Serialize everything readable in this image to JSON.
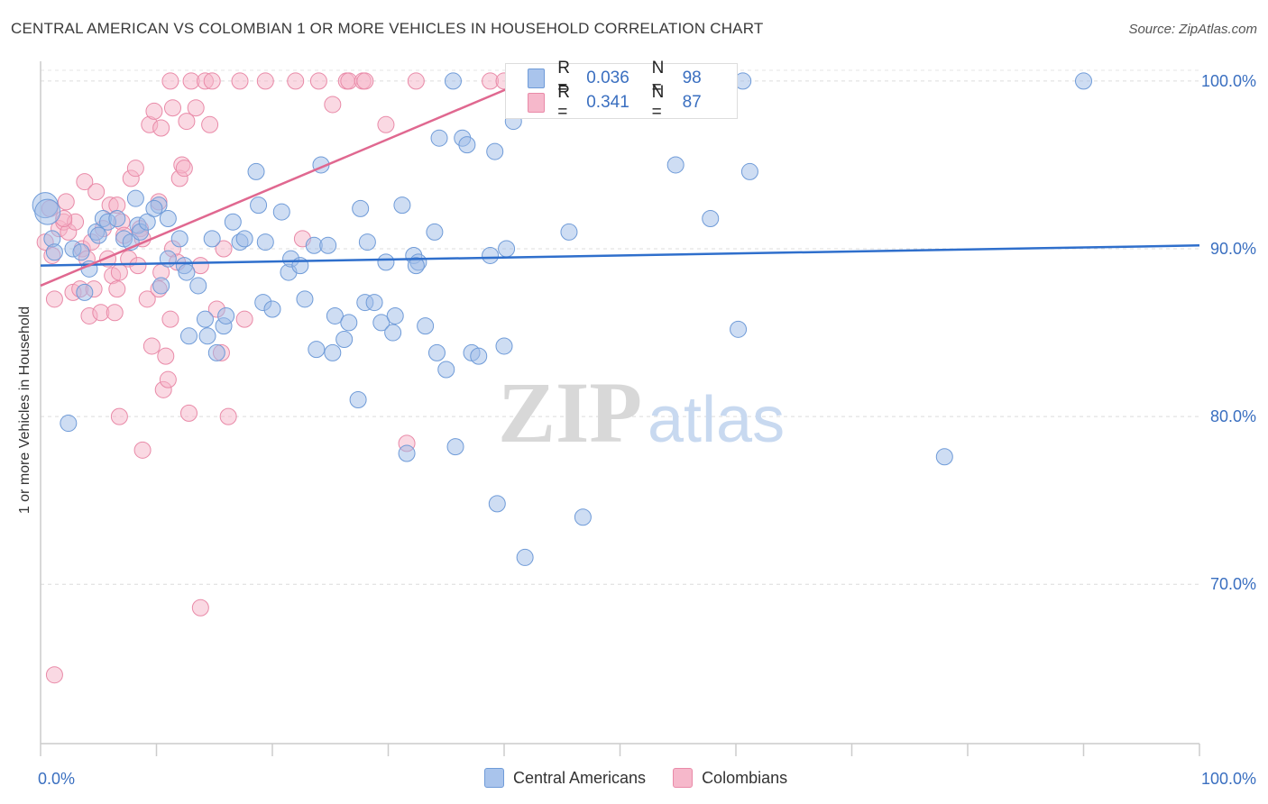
{
  "title": "CENTRAL AMERICAN VS COLOMBIAN 1 OR MORE VEHICLES IN HOUSEHOLD CORRELATION CHART",
  "source": "Source: ZipAtlas.com",
  "watermark": {
    "zip": "ZIP",
    "atlas": "atlas"
  },
  "legend_box": {
    "rows": [
      {
        "r_label": "R =",
        "r_value": "0.036",
        "n_label": "N =",
        "n_value": "98",
        "color": "#a9c4ec"
      },
      {
        "r_label": "R =",
        "r_value": "0.341",
        "n_label": "N =",
        "n_value": "87",
        "color": "#f6b8cb"
      }
    ]
  },
  "bottom_legend": [
    {
      "label": "Central Americans",
      "color": "#a9c4ec"
    },
    {
      "label": "Colombians",
      "color": "#f6b8cb"
    }
  ],
  "colors": {
    "blue_point": "#9dbbe8",
    "blue_stroke": "#6f9bd8",
    "blue_line": "#2f6fcc",
    "pink_point": "#f5b3c7",
    "pink_stroke": "#e98aa8",
    "pink_line": "#e06890",
    "tick_label": "#3a6fc0"
  },
  "chart_data": {
    "type": "scatter",
    "title": "CENTRAL AMERICAN VS COLOMBIAN 1 OR MORE VEHICLES IN HOUSEHOLD CORRELATION CHART",
    "xlabel": "",
    "ylabel": "1 or more Vehicles in Household",
    "xlim": [
      0,
      100
    ],
    "ylim": [
      60.5,
      101.5
    ],
    "x_tick_labels": [
      "0.0%",
      "100.0%"
    ],
    "y_ticks": [
      70,
      80,
      90,
      100
    ],
    "y_tick_labels": [
      "70.0%",
      "80.0%",
      "90.0%",
      "100.0%"
    ],
    "grid": true,
    "legend_position": "top-center",
    "series": [
      {
        "name": "Central Americans",
        "r": 0.036,
        "n": 98,
        "trend": [
          [
            0,
            89.0
          ],
          [
            100,
            90.2
          ]
        ],
        "points": [
          [
            0.4,
            92.6
          ],
          [
            0.6,
            92.2
          ],
          [
            1.0,
            90.6
          ],
          [
            1.2,
            89.8
          ],
          [
            2.4,
            79.6
          ],
          [
            2.8,
            90.0
          ],
          [
            3.5,
            89.8
          ],
          [
            3.8,
            87.4
          ],
          [
            4.2,
            88.8
          ],
          [
            4.8,
            91.0
          ],
          [
            5.4,
            91.8
          ],
          [
            5.8,
            91.6
          ],
          [
            6.6,
            91.8
          ],
          [
            7.2,
            90.6
          ],
          [
            7.8,
            90.4
          ],
          [
            8.2,
            93.0
          ],
          [
            8.4,
            91.4
          ],
          [
            8.6,
            91.0
          ],
          [
            9.2,
            91.6
          ],
          [
            10.2,
            92.6
          ],
          [
            10.4,
            87.8
          ],
          [
            11.0,
            91.8
          ],
          [
            11.0,
            89.4
          ],
          [
            12.4,
            89.0
          ],
          [
            12.6,
            88.6
          ],
          [
            12.8,
            84.8
          ],
          [
            13.6,
            87.8
          ],
          [
            14.2,
            85.8
          ],
          [
            14.4,
            84.8
          ],
          [
            14.8,
            90.6
          ],
          [
            15.2,
            83.8
          ],
          [
            15.8,
            85.4
          ],
          [
            16.0,
            86.0
          ],
          [
            16.6,
            91.6
          ],
          [
            17.2,
            90.4
          ],
          [
            17.6,
            90.6
          ],
          [
            18.6,
            94.6
          ],
          [
            18.8,
            92.6
          ],
          [
            19.2,
            86.8
          ],
          [
            19.4,
            90.4
          ],
          [
            20.0,
            86.4
          ],
          [
            20.8,
            92.2
          ],
          [
            21.4,
            88.6
          ],
          [
            21.6,
            89.4
          ],
          [
            22.4,
            89.0
          ],
          [
            22.8,
            87.0
          ],
          [
            23.8,
            84.0
          ],
          [
            23.6,
            90.2
          ],
          [
            24.2,
            95.0
          ],
          [
            24.8,
            90.2
          ],
          [
            25.2,
            83.8
          ],
          [
            25.4,
            86.0
          ],
          [
            26.2,
            84.6
          ],
          [
            26.6,
            85.6
          ],
          [
            27.4,
            81.0
          ],
          [
            27.6,
            92.4
          ],
          [
            28.0,
            86.8
          ],
          [
            28.2,
            90.4
          ],
          [
            28.8,
            86.8
          ],
          [
            29.4,
            85.6
          ],
          [
            29.8,
            89.2
          ],
          [
            30.4,
            85.0
          ],
          [
            30.6,
            86.0
          ],
          [
            31.2,
            92.6
          ],
          [
            32.2,
            89.6
          ],
          [
            32.6,
            89.2
          ],
          [
            32.4,
            89.0
          ],
          [
            33.2,
            85.4
          ],
          [
            34.0,
            91.0
          ],
          [
            34.2,
            83.8
          ],
          [
            34.4,
            96.6
          ],
          [
            35.0,
            82.8
          ],
          [
            35.6,
            100.0
          ],
          [
            35.8,
            78.2
          ],
          [
            36.4,
            96.6
          ],
          [
            36.8,
            96.2
          ],
          [
            37.2,
            83.8
          ],
          [
            37.8,
            83.6
          ],
          [
            38.8,
            89.6
          ],
          [
            39.2,
            95.8
          ],
          [
            39.4,
            74.8
          ],
          [
            40.0,
            84.2
          ],
          [
            40.2,
            90.0
          ],
          [
            40.8,
            97.6
          ],
          [
            41.8,
            71.6
          ],
          [
            45.6,
            91.0
          ],
          [
            46.8,
            74.0
          ],
          [
            54.8,
            95.0
          ],
          [
            57.8,
            91.8
          ],
          [
            60.2,
            85.2
          ],
          [
            60.6,
            100.0
          ],
          [
            61.2,
            94.6
          ],
          [
            78.0,
            77.6
          ],
          [
            90.0,
            100.0
          ],
          [
            31.6,
            77.8
          ],
          [
            9.8,
            92.4
          ],
          [
            5.0,
            90.8
          ],
          [
            12.0,
            90.6
          ]
        ]
      },
      {
        "name": "Colombians",
        "r": 0.341,
        "n": 87,
        "trend": [
          [
            0,
            87.8
          ],
          [
            40.5,
            99.6
          ]
        ],
        "points": [
          [
            0.4,
            90.4
          ],
          [
            0.8,
            92.4
          ],
          [
            1.0,
            89.6
          ],
          [
            1.2,
            87.0
          ],
          [
            1.6,
            91.2
          ],
          [
            2.0,
            91.6
          ],
          [
            2.2,
            92.8
          ],
          [
            2.4,
            91.0
          ],
          [
            2.8,
            87.4
          ],
          [
            3.0,
            91.6
          ],
          [
            3.4,
            87.6
          ],
          [
            3.6,
            90.0
          ],
          [
            3.8,
            94.0
          ],
          [
            4.0,
            89.4
          ],
          [
            4.2,
            86.0
          ],
          [
            4.4,
            90.4
          ],
          [
            4.6,
            87.6
          ],
          [
            4.8,
            93.4
          ],
          [
            5.2,
            86.2
          ],
          [
            5.4,
            91.2
          ],
          [
            5.8,
            89.4
          ],
          [
            6.0,
            92.6
          ],
          [
            6.2,
            88.4
          ],
          [
            6.6,
            87.6
          ],
          [
            6.6,
            92.6
          ],
          [
            6.8,
            88.6
          ],
          [
            6.8,
            80.0
          ],
          [
            7.0,
            91.6
          ],
          [
            7.2,
            90.8
          ],
          [
            7.6,
            89.4
          ],
          [
            7.8,
            94.2
          ],
          [
            8.2,
            94.8
          ],
          [
            8.4,
            89.0
          ],
          [
            8.6,
            91.2
          ],
          [
            8.8,
            90.6
          ],
          [
            8.8,
            78.0
          ],
          [
            9.2,
            87.0
          ],
          [
            9.4,
            97.4
          ],
          [
            9.6,
            84.2
          ],
          [
            9.8,
            98.2
          ],
          [
            10.2,
            92.8
          ],
          [
            10.2,
            87.6
          ],
          [
            10.4,
            97.2
          ],
          [
            10.4,
            88.6
          ],
          [
            10.6,
            81.6
          ],
          [
            10.8,
            83.6
          ],
          [
            11.0,
            82.2
          ],
          [
            11.2,
            85.8
          ],
          [
            11.4,
            90.0
          ],
          [
            11.2,
            100.0
          ],
          [
            11.4,
            98.4
          ],
          [
            11.8,
            89.2
          ],
          [
            12.0,
            94.2
          ],
          [
            12.2,
            95.0
          ],
          [
            12.4,
            94.8
          ],
          [
            12.6,
            97.6
          ],
          [
            12.8,
            80.2
          ],
          [
            13.0,
            100.0
          ],
          [
            13.4,
            98.4
          ],
          [
            13.8,
            89.0
          ],
          [
            13.8,
            68.6
          ],
          [
            14.2,
            100.0
          ],
          [
            14.6,
            97.4
          ],
          [
            14.8,
            100.0
          ],
          [
            15.2,
            86.4
          ],
          [
            15.6,
            83.8
          ],
          [
            15.8,
            90.0
          ],
          [
            16.2,
            80.0
          ],
          [
            17.2,
            100.0
          ],
          [
            17.6,
            85.8
          ],
          [
            19.4,
            100.0
          ],
          [
            22.0,
            100.0
          ],
          [
            22.6,
            90.6
          ],
          [
            24.0,
            100.0
          ],
          [
            25.2,
            98.6
          ],
          [
            26.4,
            100.0
          ],
          [
            26.6,
            100.0
          ],
          [
            27.8,
            100.0
          ],
          [
            28.0,
            100.0
          ],
          [
            29.8,
            97.4
          ],
          [
            31.6,
            78.4
          ],
          [
            32.4,
            100.0
          ],
          [
            38.8,
            100.0
          ],
          [
            40.0,
            100.0
          ],
          [
            1.2,
            64.6
          ],
          [
            2.0,
            91.8
          ],
          [
            6.4,
            86.2
          ]
        ]
      }
    ]
  }
}
